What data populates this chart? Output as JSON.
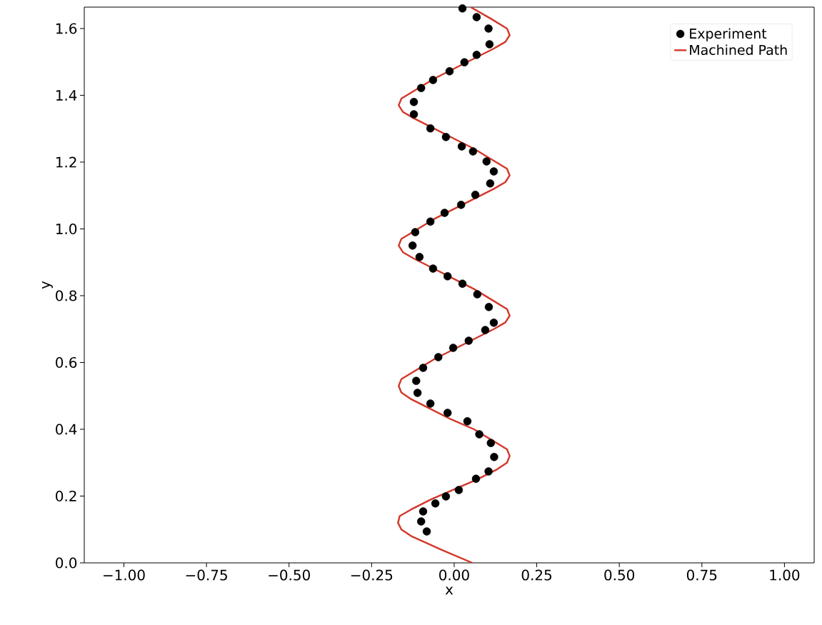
{
  "chart_data": {
    "type": "scatter",
    "xlabel": "x",
    "ylabel": "y",
    "xlim": [
      -1.12,
      1.09
    ],
    "ylim": [
      0,
      1.664
    ],
    "xticks": [
      {
        "value": -1,
        "label": "−1.00"
      },
      {
        "value": -0.75,
        "label": "−0.75"
      },
      {
        "value": -0.5,
        "label": "−0.50"
      },
      {
        "value": -0.25,
        "label": "−0.25"
      },
      {
        "value": 0,
        "label": "0.00"
      },
      {
        "value": 0.25,
        "label": "0.25"
      },
      {
        "value": 0.5,
        "label": "0.50"
      },
      {
        "value": 0.75,
        "label": "0.75"
      },
      {
        "value": 1,
        "label": "1.00"
      }
    ],
    "yticks": [
      {
        "value": 0,
        "label": "0.0"
      },
      {
        "value": 0.2,
        "label": "0.2"
      },
      {
        "value": 0.4,
        "label": "0.4"
      },
      {
        "value": 0.6,
        "label": "0.6"
      },
      {
        "value": 0.8,
        "label": "0.8"
      },
      {
        "value": 1.0,
        "label": "1.0"
      },
      {
        "value": 1.2,
        "label": "1.2"
      },
      {
        "value": 1.4,
        "label": "1.4"
      },
      {
        "value": 1.6,
        "label": "1.6"
      }
    ],
    "legend": "top right",
    "grid": false,
    "series": [
      {
        "name": "Experiment",
        "marker": "circle",
        "color": "#000000",
        "x": [
          -0.083,
          -0.1,
          -0.094,
          -0.057,
          -0.025,
          0.014,
          0.066,
          0.104,
          0.121,
          0.111,
          0.076,
          0.04,
          -0.02,
          -0.072,
          -0.111,
          -0.115,
          -0.094,
          -0.048,
          -0.003,
          0.044,
          0.094,
          0.12,
          0.105,
          0.07,
          0.025,
          -0.02,
          -0.064,
          -0.105,
          -0.126,
          -0.118,
          -0.072,
          -0.029,
          0.021,
          0.064,
          0.109,
          0.12,
          0.098,
          0.057,
          0.023,
          -0.025,
          -0.072,
          -0.122,
          -0.122,
          -0.1,
          -0.064,
          -0.014,
          0.031,
          0.068,
          0.107,
          0.104,
          0.068,
          0.025
        ],
        "values": [
          0.094,
          0.124,
          0.154,
          0.178,
          0.199,
          0.218,
          0.252,
          0.274,
          0.317,
          0.359,
          0.385,
          0.424,
          0.449,
          0.477,
          0.509,
          0.545,
          0.584,
          0.616,
          0.644,
          0.665,
          0.697,
          0.719,
          0.766,
          0.804,
          0.836,
          0.858,
          0.881,
          0.916,
          0.95,
          0.99,
          1.022,
          1.048,
          1.072,
          1.102,
          1.136,
          1.172,
          1.202,
          1.232,
          1.247,
          1.275,
          1.301,
          1.343,
          1.38,
          1.422,
          1.446,
          1.472,
          1.499,
          1.521,
          1.553,
          1.6,
          1.634,
          1.66
        ]
      },
      {
        "name": "Machined Path",
        "type": "line",
        "line_style": "solid",
        "color": "#d3372a",
        "x": [
          0.055,
          -0.04,
          -0.13,
          -0.16,
          -0.17,
          -0.165,
          -0.13,
          -0.07,
          0.0,
          0.07,
          0.13,
          0.16,
          0.168,
          0.16,
          0.11,
          0.06,
          -0.01,
          -0.07,
          -0.13,
          -0.16,
          -0.168,
          -0.16,
          -0.11,
          -0.06,
          0.0,
          0.12,
          0.155,
          0.168,
          0.16,
          0.11,
          0.06,
          0.0,
          -0.06,
          -0.12,
          -0.155,
          -0.168,
          -0.16,
          -0.11,
          -0.06,
          0.0,
          0.06,
          0.12,
          0.155,
          0.168,
          0.16,
          0.11,
          0.06,
          0.0,
          -0.06,
          -0.12,
          -0.155,
          -0.168,
          -0.16,
          -0.11,
          -0.06,
          0.0,
          0.12,
          0.155,
          0.168,
          0.16,
          0.11,
          0.05
        ],
        "values": [
          0,
          0.04,
          0.08,
          0.1,
          0.12,
          0.14,
          0.16,
          0.19,
          0.22,
          0.25,
          0.28,
          0.3,
          0.32,
          0.34,
          0.37,
          0.4,
          0.43,
          0.46,
          0.49,
          0.51,
          0.53,
          0.55,
          0.58,
          0.61,
          0.64,
          0.7,
          0.72,
          0.74,
          0.76,
          0.79,
          0.82,
          0.85,
          0.88,
          0.91,
          0.93,
          0.95,
          0.97,
          1.0,
          1.03,
          1.06,
          1.09,
          1.12,
          1.14,
          1.16,
          1.18,
          1.21,
          1.24,
          1.27,
          1.3,
          1.33,
          1.35,
          1.37,
          1.39,
          1.42,
          1.45,
          1.48,
          1.54,
          1.56,
          1.58,
          1.6,
          1.63,
          1.664
        ]
      }
    ]
  }
}
